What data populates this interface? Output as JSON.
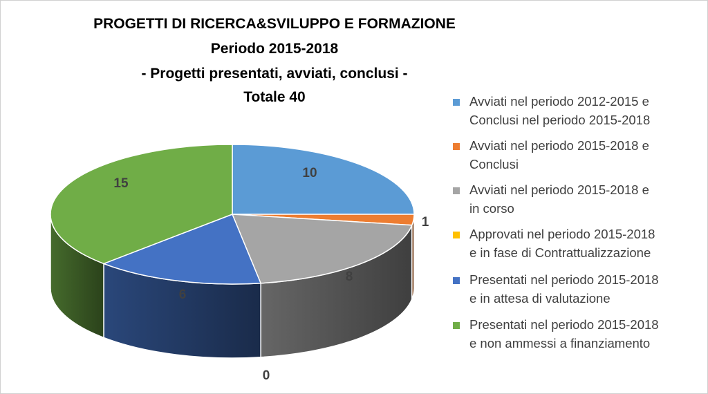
{
  "chart_data": {
    "type": "pie",
    "title": [
      "PROGETTI DI RICERCA&SVILUPPO E FORMAZIONE",
      "Periodo 2015-2018",
      "- Progetti presentati, avviati, conclusi -",
      "Totale 40"
    ],
    "slices": [
      {
        "label": "Avviati nel periodo 2012-2015 e Conclusi nel periodo 2015-2018",
        "value": 10,
        "color": "#5B9BD5"
      },
      {
        "label": "Avviati nel periodo 2015-2018 e Conclusi",
        "value": 1,
        "color": "#ED7D31"
      },
      {
        "label": "Avviati nel periodo 2015-2018 e in corso",
        "value": 8,
        "color": "#A5A5A5"
      },
      {
        "label": "Approvati nel periodo 2015-2018 e in fase di Contrattualizzazione",
        "value": 0,
        "color": "#FFC000"
      },
      {
        "label": "Presentati nel periodo 2015-2018 e in attesa di valutazione",
        "value": 6,
        "color": "#4472C4"
      },
      {
        "label": "Presentati nel periodo 2015-2018 e non ammessi a finanziamento",
        "value": 15,
        "color": "#70AD47"
      }
    ],
    "data_labels": [
      "10",
      "1",
      "8",
      "0",
      "6",
      "15"
    ],
    "legend_position": "right",
    "style": "3d-pie"
  },
  "legend_lines": [
    [
      "Avviati nel periodo 2012-2015 e",
      "Conclusi nel periodo 2015-2018"
    ],
    [
      "Avviati nel periodo 2015-2018 e",
      "Conclusi"
    ],
    [
      "Avviati nel periodo 2015-2018 e",
      "in corso"
    ],
    [
      "Approvati nel periodo 2015-2018",
      "e in fase di Contrattualizzazione"
    ],
    [
      "Presentati nel periodo 2015-2018",
      "e in attesa di valutazione"
    ],
    [
      "Presentati nel periodo 2015-2018",
      "e non ammessi a finanziamento"
    ]
  ]
}
